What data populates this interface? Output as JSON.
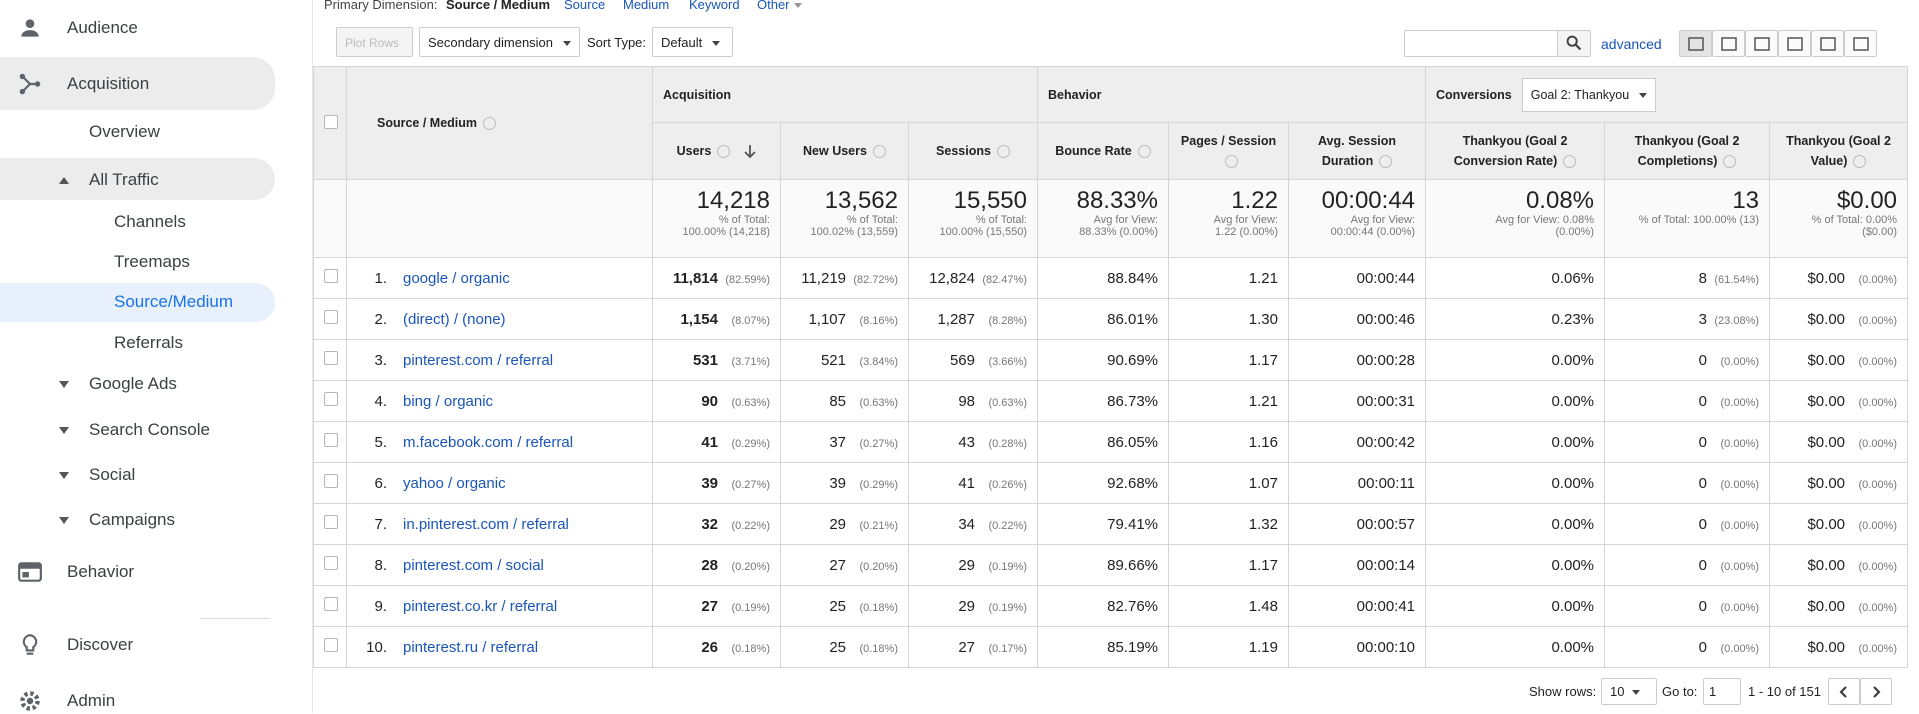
{
  "sidebar": [
    "Audience",
    "Acquisition",
    "Overview",
    "All Traffic",
    "Channels",
    "Treemaps",
    "Source/Medium",
    "Referrals",
    "Google Ads",
    "Search Console",
    "Social",
    "Campaigns",
    "Behavior",
    "Discover",
    "Admin"
  ],
  "toolbar": {
    "primary_label": "Primary Dimension:",
    "dimensions": [
      "Source / Medium",
      "Source",
      "Medium",
      "Keyword",
      "Other"
    ],
    "plot_rows": "Plot Rows",
    "secondary_dimension": "Secondary dimension",
    "sort_type_label": "Sort Type:",
    "sort_type": "Default",
    "advanced": "advanced"
  },
  "table": {
    "groups": [
      "Acquisition",
      "Behavior",
      "Conversions"
    ],
    "goal_select": "Goal 2: Thankyou",
    "columns": [
      "Source / Medium",
      "Users",
      "New Users",
      "Sessions",
      "Bounce Rate",
      "Pages / Session",
      "Avg. Session Duration",
      "Thankyou (Goal 2 Conversion Rate)",
      "Thankyou (Goal 2 Completions)",
      "Thankyou (Goal 2 Value)"
    ],
    "totals": [
      {
        "value": "14,218",
        "lines": [
          "% of Total:",
          "100.00% (14,218)"
        ]
      },
      {
        "value": "13,562",
        "lines": [
          "% of Total:",
          "100.02% (13,559)"
        ]
      },
      {
        "value": "15,550",
        "lines": [
          "% of Total:",
          "100.00% (15,550)"
        ]
      },
      {
        "value": "88.33%",
        "lines": [
          "Avg for View:",
          "88.33% (0.00%)"
        ]
      },
      {
        "value": "1.22",
        "lines": [
          "Avg for View:",
          "1.22 (0.00%)"
        ]
      },
      {
        "value": "00:00:44",
        "lines": [
          "Avg for View:",
          "00:00:44 (0.00%)"
        ]
      },
      {
        "value": "0.08%",
        "lines": [
          "Avg for View: 0.08%",
          "(0.00%)"
        ]
      },
      {
        "value": "13",
        "lines": [
          "% of Total: 100.00% (13)"
        ]
      },
      {
        "value": "$0.00",
        "lines": [
          "% of Total: 0.00%",
          "($0.00)"
        ]
      }
    ],
    "rows": [
      [
        "1.",
        "google / organic",
        "11,814",
        "(82.59%)",
        "11,219",
        "(82.72%)",
        "12,824",
        "(82.47%)",
        "88.84%",
        "1.21",
        "00:00:44",
        "0.06%",
        "8",
        "(61.54%)",
        "$0.00",
        "(0.00%)"
      ],
      [
        "2.",
        "(direct) / (none)",
        "1,154",
        "(8.07%)",
        "1,107",
        "(8.16%)",
        "1,287",
        "(8.28%)",
        "86.01%",
        "1.30",
        "00:00:46",
        "0.23%",
        "3",
        "(23.08%)",
        "$0.00",
        "(0.00%)"
      ],
      [
        "3.",
        "pinterest.com / referral",
        "531",
        "(3.71%)",
        "521",
        "(3.84%)",
        "569",
        "(3.66%)",
        "90.69%",
        "1.17",
        "00:00:28",
        "0.00%",
        "0",
        "(0.00%)",
        "$0.00",
        "(0.00%)"
      ],
      [
        "4.",
        "bing / organic",
        "90",
        "(0.63%)",
        "85",
        "(0.63%)",
        "98",
        "(0.63%)",
        "86.73%",
        "1.21",
        "00:00:31",
        "0.00%",
        "0",
        "(0.00%)",
        "$0.00",
        "(0.00%)"
      ],
      [
        "5.",
        "m.facebook.com / referral",
        "41",
        "(0.29%)",
        "37",
        "(0.27%)",
        "43",
        "(0.28%)",
        "86.05%",
        "1.16",
        "00:00:42",
        "0.00%",
        "0",
        "(0.00%)",
        "$0.00",
        "(0.00%)"
      ],
      [
        "6.",
        "yahoo / organic",
        "39",
        "(0.27%)",
        "39",
        "(0.29%)",
        "41",
        "(0.26%)",
        "92.68%",
        "1.07",
        "00:00:11",
        "0.00%",
        "0",
        "(0.00%)",
        "$0.00",
        "(0.00%)"
      ],
      [
        "7.",
        "in.pinterest.com / referral",
        "32",
        "(0.22%)",
        "29",
        "(0.21%)",
        "34",
        "(0.22%)",
        "79.41%",
        "1.32",
        "00:00:57",
        "0.00%",
        "0",
        "(0.00%)",
        "$0.00",
        "(0.00%)"
      ],
      [
        "8.",
        "pinterest.com / social",
        "28",
        "(0.20%)",
        "27",
        "(0.20%)",
        "29",
        "(0.19%)",
        "89.66%",
        "1.17",
        "00:00:14",
        "0.00%",
        "0",
        "(0.00%)",
        "$0.00",
        "(0.00%)"
      ],
      [
        "9.",
        "pinterest.co.kr / referral",
        "27",
        "(0.19%)",
        "25",
        "(0.18%)",
        "29",
        "(0.19%)",
        "82.76%",
        "1.48",
        "00:00:41",
        "0.00%",
        "0",
        "(0.00%)",
        "$0.00",
        "(0.00%)"
      ],
      [
        "10.",
        "pinterest.ru / referral",
        "26",
        "(0.18%)",
        "25",
        "(0.18%)",
        "27",
        "(0.17%)",
        "85.19%",
        "1.19",
        "00:00:10",
        "0.00%",
        "0",
        "(0.00%)",
        "$0.00",
        "(0.00%)"
      ]
    ]
  },
  "footer": {
    "show_rows_label": "Show rows:",
    "show_rows": "10",
    "goto_label": "Go to:",
    "goto": "1",
    "range": "1 - 10 of 151"
  }
}
